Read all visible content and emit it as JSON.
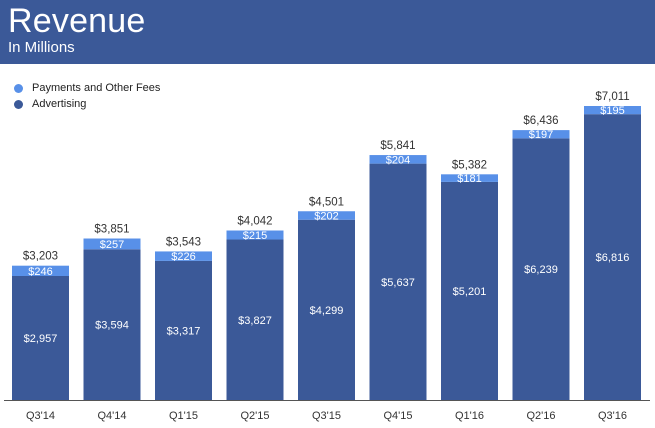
{
  "header": {
    "title": "Revenue",
    "subtitle": "In Millions"
  },
  "colors": {
    "header_bg": "#3b5998",
    "advertising": "#3b5998",
    "payments": "#5890e8",
    "axis": "#555555",
    "total_label": "#333333",
    "inner_label": "#ffffff"
  },
  "chart_data": {
    "type": "bar",
    "stacked": true,
    "title": "Revenue",
    "subtitle": "In Millions",
    "xlabel": "",
    "ylabel": "",
    "ylim": [
      0,
      7011
    ],
    "legend_position": "top-left",
    "grid": false,
    "categories": [
      "Q3'14",
      "Q4'14",
      "Q1'15",
      "Q2'15",
      "Q3'15",
      "Q4'15",
      "Q1'16",
      "Q2'16",
      "Q3'16"
    ],
    "series": [
      {
        "name": "Advertising",
        "values": [
          2957,
          3594,
          3317,
          3827,
          4299,
          5637,
          5201,
          6239,
          6816
        ],
        "labels": [
          "$2,957",
          "$3,594",
          "$3,317",
          "$3,827",
          "$4,299",
          "$5,637",
          "$5,201",
          "$6,239",
          "$6,816"
        ]
      },
      {
        "name": "Payments and Other Fees",
        "values": [
          246,
          257,
          226,
          215,
          202,
          204,
          181,
          197,
          195
        ],
        "labels": [
          "$246",
          "$257",
          "$226",
          "$215",
          "$202",
          "$204",
          "$181",
          "$197",
          "$195"
        ]
      }
    ],
    "totals": [
      3203,
      3851,
      3543,
      4042,
      4501,
      5841,
      5382,
      6436,
      7011
    ],
    "total_labels": [
      "$3,203",
      "$3,851",
      "$3,543",
      "$4,042",
      "$4,501",
      "$5,841",
      "$5,382",
      "$6,436",
      "$7,011"
    ]
  },
  "legend": {
    "items": [
      {
        "label": "Payments and Other Fees",
        "color": "#5890e8"
      },
      {
        "label": "Advertising",
        "color": "#3b5998"
      }
    ]
  }
}
